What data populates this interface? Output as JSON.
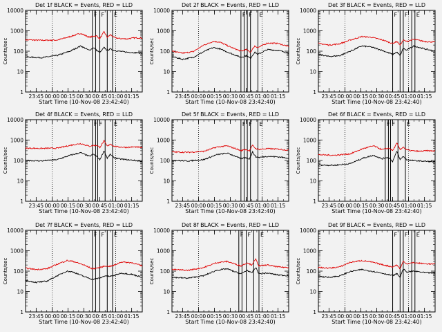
{
  "chart_data": {
    "type": "line",
    "panel_grid": "3x3",
    "y_scale": "log",
    "ylim": [
      1,
      10000
    ],
    "y_ticks": [
      1,
      10,
      100,
      1000,
      10000
    ],
    "y_tick_labels": [
      "1",
      "10",
      "100",
      "1000",
      "10000"
    ],
    "xlim": [
      "23:35",
      "01:25"
    ],
    "x_ticks": [
      "23:45",
      "00:00",
      "00:15",
      "00:30",
      "00:45",
      "01:00",
      "01:15"
    ],
    "x_tick_labels": [
      "23:45",
      "00:00",
      "00:15",
      "00:30",
      "00:45",
      "01:00",
      "01:15"
    ],
    "xlabel": "Start Time (10-Nov-08 23:42:40)",
    "ylabel": "Counts/sec",
    "dotted_lines_at": [
      "00:00",
      "01:00"
    ],
    "colors": {
      "events": "#000000",
      "lld": "#e00000",
      "background": "#f2f2f2"
    },
    "panels": [
      {
        "title": "Det 1f BLACK = Events, RED = LLD",
        "intervals": [
          {
            "start": "00:38",
            "end": "00:41",
            "label": "F"
          },
          {
            "start": "00:45",
            "end": "00:52",
            "label": "F"
          },
          {
            "start": "00:57",
            "end": "01:25",
            "label": "E"
          }
        ],
        "series": [
          {
            "color": "#e00000",
            "t": [
              "23:35",
              "23:50",
              "00:05",
              "00:17",
              "00:27",
              "00:35",
              "00:39",
              "00:42",
              "00:45",
              "00:49",
              "00:52",
              "00:55",
              "00:58",
              "01:03",
              "01:10",
              "01:18",
              "01:25"
            ],
            "v": [
              360,
              340,
              350,
              520,
              750,
              480,
              540,
              560,
              410,
              900,
              480,
              640,
              480,
              420,
              400,
              450,
              440
            ]
          },
          {
            "color": "#000000",
            "t": [
              "23:35",
              "23:50",
              "00:05",
              "00:17",
              "00:27",
              "00:35",
              "00:39",
              "00:42",
              "00:45",
              "00:49",
              "00:52",
              "00:55",
              "00:58",
              "01:03",
              "01:10",
              "01:18",
              "01:25"
            ],
            "v": [
              52,
              48,
              62,
              100,
              180,
              110,
              150,
              110,
              85,
              150,
              110,
              130,
              110,
              100,
              90,
              85,
              80
            ]
          }
        ]
      },
      {
        "title": "Det 2f BLACK = Events, RED = LLD",
        "intervals": [
          {
            "start": "00:40",
            "end": "00:43",
            "label": "F"
          },
          {
            "start": "00:46",
            "end": "00:49",
            "label": "F"
          },
          {
            "start": "00:56",
            "end": "01:25",
            "label": "E"
          }
        ],
        "series": [
          {
            "color": "#e00000",
            "t": [
              "23:35",
              "23:45",
              "23:55",
              "00:05",
              "00:14",
              "00:20",
              "00:30",
              "00:40",
              "00:45",
              "00:49",
              "00:53",
              "00:56",
              "01:05",
              "01:15",
              "01:25"
            ],
            "v": [
              100,
              80,
              95,
              200,
              300,
              280,
              160,
              100,
              120,
              90,
              180,
              150,
              250,
              240,
              170
            ]
          },
          {
            "color": "#000000",
            "t": [
              "23:35",
              "23:45",
              "23:55",
              "00:05",
              "00:14",
              "00:20",
              "00:30",
              "00:40",
              "00:45",
              "00:49",
              "00:53",
              "00:56",
              "01:05",
              "01:15",
              "01:25"
            ],
            "v": [
              55,
              40,
              50,
              95,
              150,
              130,
              80,
              50,
              60,
              45,
              90,
              70,
              120,
              110,
              80
            ]
          }
        ]
      },
      {
        "title": "Det 3f BLACK = Events, RED = LLD",
        "intervals": [
          {
            "start": "00:45",
            "end": "00:52",
            "label": "F"
          },
          {
            "start": "00:55",
            "end": "01:03",
            "label": "F"
          },
          {
            "start": "01:06",
            "end": "01:25",
            "label": "E"
          }
        ],
        "series": [
          {
            "color": "#e00000",
            "t": [
              "23:35",
              "23:45",
              "23:55",
              "00:05",
              "00:16",
              "00:25",
              "00:35",
              "00:45",
              "00:49",
              "00:52",
              "00:55",
              "00:58",
              "01:05",
              "01:15",
              "01:25"
            ],
            "v": [
              240,
              200,
              230,
              350,
              520,
              480,
              360,
              240,
              300,
              200,
              350,
              300,
              380,
              300,
              280
            ]
          },
          {
            "color": "#000000",
            "t": [
              "23:35",
              "23:45",
              "23:55",
              "00:05",
              "00:16",
              "00:25",
              "00:35",
              "00:45",
              "00:49",
              "00:52",
              "00:55",
              "00:58",
              "01:05",
              "01:15",
              "01:25"
            ],
            "v": [
              70,
              55,
              60,
              100,
              180,
              160,
              110,
              70,
              90,
              60,
              140,
              110,
              180,
              130,
              100
            ]
          }
        ]
      },
      {
        "title": "Det 4f BLACK = Events, RED = LLD",
        "intervals": [
          {
            "start": "00:38",
            "end": "00:41",
            "label": "F"
          },
          {
            "start": "00:43",
            "end": "00:50",
            "label": "F"
          },
          {
            "start": "00:57",
            "end": "01:25",
            "label": "E"
          }
        ],
        "series": [
          {
            "color": "#e00000",
            "t": [
              "23:35",
              "23:50",
              "00:05",
              "00:17",
              "00:27",
              "00:35",
              "00:39",
              "00:42",
              "00:45",
              "00:49",
              "00:52",
              "00:55",
              "00:58",
              "01:03",
              "01:10",
              "01:18",
              "01:25"
            ],
            "v": [
              400,
              390,
              400,
              550,
              680,
              500,
              540,
              560,
              440,
              900,
              500,
              650,
              500,
              460,
              440,
              460,
              430
            ]
          },
          {
            "color": "#000000",
            "t": [
              "23:35",
              "23:50",
              "00:05",
              "00:17",
              "00:27",
              "00:35",
              "00:39",
              "00:42",
              "00:45",
              "00:49",
              "00:52",
              "00:55",
              "00:58",
              "01:03",
              "01:10",
              "01:18",
              "01:25"
            ],
            "v": [
              100,
              95,
              110,
              180,
              240,
              160,
              200,
              160,
              110,
              300,
              130,
              200,
              140,
              120,
              110,
              100,
              90
            ]
          }
        ]
      },
      {
        "title": "Det 5f BLACK = Events, RED = LLD",
        "intervals": [
          {
            "start": "00:40",
            "end": "00:43",
            "label": "F"
          },
          {
            "start": "00:46",
            "end": "00:49",
            "label": "F"
          },
          {
            "start": "00:56",
            "end": "01:25",
            "label": "E"
          }
        ],
        "series": [
          {
            "color": "#e00000",
            "t": [
              "23:35",
              "23:50",
              "00:05",
              "00:17",
              "00:27",
              "00:35",
              "00:40",
              "00:44",
              "00:48",
              "00:51",
              "00:54",
              "00:57",
              "01:05",
              "01:15",
              "01:25"
            ],
            "v": [
              260,
              250,
              280,
              450,
              520,
              380,
              300,
              350,
              300,
              550,
              380,
              350,
              380,
              360,
              320
            ]
          },
          {
            "color": "#000000",
            "t": [
              "23:35",
              "23:50",
              "00:05",
              "00:17",
              "00:27",
              "00:35",
              "00:40",
              "00:44",
              "00:48",
              "00:51",
              "00:54",
              "00:57",
              "01:05",
              "01:15",
              "01:25"
            ],
            "v": [
              100,
              95,
              110,
              190,
              230,
              160,
              120,
              140,
              120,
              260,
              150,
              140,
              160,
              150,
              130
            ]
          }
        ]
      },
      {
        "title": "Det 6f BLACK = Events, RED = LLD",
        "intervals": [
          {
            "start": "00:38",
            "end": "00:41",
            "label": "F"
          },
          {
            "start": "00:43",
            "end": "00:50",
            "label": "F"
          },
          {
            "start": "00:57",
            "end": "01:25",
            "label": "E"
          }
        ],
        "series": [
          {
            "color": "#e00000",
            "t": [
              "23:35",
              "23:50",
              "00:05",
              "00:17",
              "00:27",
              "00:35",
              "00:39",
              "00:42",
              "00:45",
              "00:49",
              "00:52",
              "00:55",
              "00:58",
              "01:03",
              "01:10",
              "01:18",
              "01:25"
            ],
            "v": [
              190,
              180,
              210,
              380,
              520,
              340,
              380,
              400,
              300,
              700,
              340,
              460,
              330,
              300,
              280,
              300,
              290
            ]
          },
          {
            "color": "#000000",
            "t": [
              "23:35",
              "23:50",
              "00:05",
              "00:17",
              "00:27",
              "00:35",
              "00:39",
              "00:42",
              "00:45",
              "00:49",
              "00:52",
              "00:55",
              "00:58",
              "01:03",
              "01:10",
              "01:18",
              "01:25"
            ],
            "v": [
              60,
              58,
              70,
              130,
              180,
              120,
              140,
              130,
              90,
              280,
              110,
              160,
              110,
              100,
              95,
              90,
              85
            ]
          }
        ]
      },
      {
        "title": "Det 7f BLACK = Events, RED = LLD",
        "intervals": [
          {
            "start": "00:38",
            "end": "00:41",
            "label": "F"
          },
          {
            "start": "00:45",
            "end": "00:52",
            "label": "F"
          },
          {
            "start": "00:57",
            "end": "01:25",
            "label": "E"
          }
        ],
        "series": [
          {
            "color": "#e00000",
            "t": [
              "23:35",
              "23:45",
              "23:55",
              "00:05",
              "00:14",
              "00:20",
              "00:30",
              "00:38",
              "00:45",
              "00:50",
              "00:54",
              "00:58",
              "01:05",
              "01:15",
              "01:25"
            ],
            "v": [
              140,
              120,
              130,
              220,
              330,
              300,
              200,
              130,
              150,
              180,
              170,
              190,
              280,
              260,
              180
            ]
          },
          {
            "color": "#000000",
            "t": [
              "23:35",
              "23:45",
              "23:55",
              "00:05",
              "00:14",
              "00:20",
              "00:30",
              "00:38",
              "00:45",
              "00:50",
              "00:54",
              "00:58",
              "01:05",
              "01:15",
              "01:25"
            ],
            "v": [
              35,
              28,
              32,
              60,
              100,
              90,
              55,
              40,
              45,
              60,
              55,
              60,
              80,
              70,
              50
            ]
          }
        ]
      },
      {
        "title": "Det 8f BLACK = Events, RED = LLD",
        "intervals": [
          {
            "start": "00:38",
            "end": "00:41",
            "label": "F"
          },
          {
            "start": "00:45",
            "end": "00:52",
            "label": "F"
          },
          {
            "start": "00:57",
            "end": "01:25",
            "label": "E"
          }
        ],
        "series": [
          {
            "color": "#e00000",
            "t": [
              "23:35",
              "23:50",
              "00:05",
              "00:17",
              "00:27",
              "00:35",
              "00:40",
              "00:46",
              "00:50",
              "00:54",
              "00:57",
              "01:05",
              "01:15",
              "01:25"
            ],
            "v": [
              120,
              110,
              150,
              260,
              300,
              220,
              180,
              260,
              200,
              380,
              180,
              200,
              160,
              150
            ]
          },
          {
            "color": "#000000",
            "t": [
              "23:35",
              "23:50",
              "00:05",
              "00:17",
              "00:27",
              "00:35",
              "00:40",
              "00:46",
              "00:50",
              "00:54",
              "00:57",
              "01:05",
              "01:15",
              "01:25"
            ],
            "v": [
              50,
              45,
              60,
              110,
              130,
              90,
              75,
              110,
              80,
              150,
              75,
              80,
              65,
              60
            ]
          }
        ]
      },
      {
        "title": "Det 9f BLACK = Events, RED = LLD",
        "intervals": [
          {
            "start": "00:45",
            "end": "00:52",
            "label": "F"
          },
          {
            "start": "00:55",
            "end": "01:03",
            "label": "F"
          },
          {
            "start": "01:06",
            "end": "01:25",
            "label": "E"
          }
        ],
        "series": [
          {
            "color": "#e00000",
            "t": [
              "23:35",
              "23:45",
              "23:55",
              "00:05",
              "00:16",
              "00:25",
              "00:35",
              "00:45",
              "00:49",
              "00:52",
              "00:55",
              "00:58",
              "01:05",
              "01:15",
              "01:25"
            ],
            "v": [
              150,
              140,
              160,
              270,
              330,
              280,
              210,
              160,
              200,
              130,
              300,
              230,
              260,
              230,
              220
            ]
          },
          {
            "color": "#000000",
            "t": [
              "23:35",
              "23:45",
              "23:55",
              "00:05",
              "00:16",
              "00:25",
              "00:35",
              "00:45",
              "00:49",
              "00:52",
              "00:55",
              "00:58",
              "01:05",
              "01:15",
              "01:25"
            ],
            "v": [
              55,
              50,
              58,
              95,
              120,
              100,
              80,
              60,
              75,
              50,
              130,
              90,
              100,
              85,
              80
            ]
          }
        ]
      }
    ]
  }
}
